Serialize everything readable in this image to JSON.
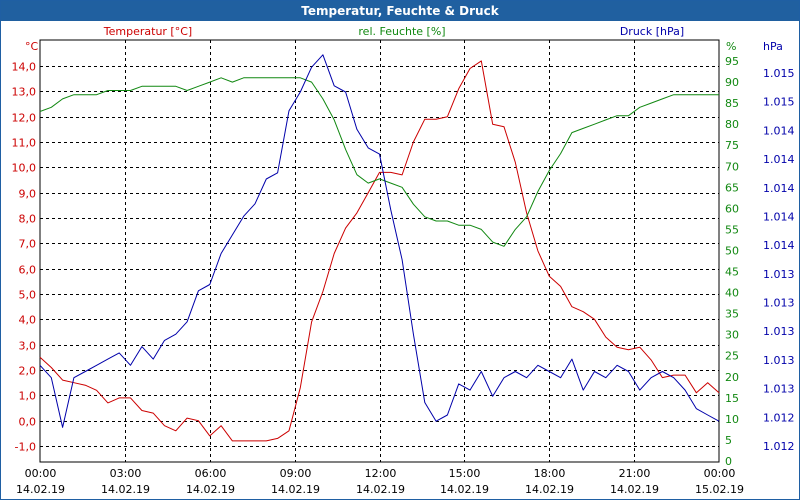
{
  "window": {
    "title": "Temperatur, Feuchte & Druck"
  },
  "colors": {
    "temperature": "#cc0000",
    "humidity": "#118811",
    "pressure": "#0000aa",
    "grid": "#000000",
    "title_bar": "#2060a0"
  },
  "chart_data": {
    "type": "line",
    "title": "Temperatur, Feuchte & Druck",
    "grid": true,
    "x_ticks": [
      {
        "time": "00:00",
        "date": "14.02.19"
      },
      {
        "time": "03:00",
        "date": "14.02.19"
      },
      {
        "time": "06:00",
        "date": "14.02.19"
      },
      {
        "time": "09:00",
        "date": "14.02.19"
      },
      {
        "time": "12:00",
        "date": "14.02.19"
      },
      {
        "time": "15:00",
        "date": "14.02.19"
      },
      {
        "time": "18:00",
        "date": "14.02.19"
      },
      {
        "time": "21:00",
        "date": "14.02.19"
      },
      {
        "time": "00:00",
        "date": "15.02.19"
      }
    ],
    "axes": {
      "temperature": {
        "label": "Temperatur [°C]",
        "unit": "°C",
        "ylim": [
          -2,
          15
        ],
        "tick_labels": [
          "-1,0",
          "0,0",
          "1,0",
          "2,0",
          "3,0",
          "4,0",
          "5,0",
          "6,0",
          "7,0",
          "8,0",
          "9,0",
          "10,0",
          "11,0",
          "12,0",
          "13,0",
          "14,0"
        ]
      },
      "humidity": {
        "label": "rel. Feuchte [%]",
        "unit": "%",
        "ylim": [
          0,
          100
        ],
        "tick_labels": [
          "0",
          "5",
          "10",
          "15",
          "20",
          "25",
          "30",
          "35",
          "40",
          "45",
          "50",
          "55",
          "60",
          "65",
          "70",
          "75",
          "80",
          "85",
          "90",
          "95"
        ]
      },
      "pressure": {
        "label": "Druck [hPa]",
        "unit": "hPa",
        "ylim": [
          1011.82,
          1015.15
        ],
        "tick_labels": [
          "1.012",
          "1.012",
          "1.013",
          "1.013",
          "1.013",
          "1.013",
          "1.013",
          "1.014",
          "1.014",
          "1.014",
          "1.014",
          "1.014",
          "1.015",
          "1.015"
        ]
      }
    },
    "series": [
      {
        "name": "Temperatur [°C]",
        "axis": "temperature",
        "x_hours": [
          0,
          0.4,
          0.8,
          1.2,
          1.6,
          2,
          2.4,
          2.8,
          3.2,
          3.6,
          4,
          4.4,
          4.8,
          5.2,
          5.6,
          6,
          6.4,
          6.8,
          7.2,
          7.6,
          8,
          8.4,
          8.8,
          9.2,
          9.6,
          10,
          10.4,
          10.8,
          11.2,
          11.6,
          12,
          12.4,
          12.8,
          13.2,
          13.6,
          14,
          14.4,
          14.8,
          15.2,
          15.6,
          16,
          16.4,
          16.8,
          17.2,
          17.6,
          18,
          18.4,
          18.8,
          19.2,
          19.6,
          20,
          20.4,
          20.8,
          21.2,
          21.6,
          22,
          22.4,
          22.8,
          23.2,
          23.6,
          24
        ],
        "values": [
          2.5,
          2.1,
          1.6,
          1.5,
          1.4,
          1.2,
          0.7,
          0.9,
          0.9,
          0.4,
          0.3,
          -0.2,
          -0.4,
          0.1,
          0.0,
          -0.6,
          -0.2,
          -0.8,
          -0.8,
          -0.8,
          -0.8,
          -0.7,
          -0.4,
          1.3,
          3.9,
          5.1,
          6.6,
          7.6,
          8.2,
          9.0,
          9.8,
          9.8,
          9.7,
          11.0,
          11.9,
          11.9,
          12.0,
          13.1,
          13.9,
          14.2,
          11.7,
          11.6,
          10.2,
          8.2,
          6.7,
          5.7,
          5.3,
          4.5,
          4.3,
          4.0,
          3.3,
          2.9,
          2.8,
          2.9,
          2.4,
          1.7,
          1.8,
          1.8,
          1.1,
          1.5,
          1.1
        ],
        "color": "#cc0000"
      },
      {
        "name": "rel. Feuchte [%]",
        "axis": "humidity",
        "x_hours": [
          0,
          0.4,
          0.8,
          1.2,
          1.6,
          2,
          2.4,
          2.8,
          3.2,
          3.6,
          4,
          4.4,
          4.8,
          5.2,
          5.6,
          6,
          6.4,
          6.8,
          7.2,
          7.6,
          8,
          8.4,
          8.8,
          9.2,
          9.6,
          10,
          10.4,
          10.8,
          11.2,
          11.6,
          12,
          12.4,
          12.8,
          13.2,
          13.6,
          14,
          14.4,
          14.8,
          15.2,
          15.6,
          16,
          16.4,
          16.8,
          17.2,
          17.6,
          18,
          18.4,
          18.8,
          19.2,
          19.6,
          20,
          20.4,
          20.8,
          21.2,
          21.6,
          22,
          22.4,
          22.8,
          23.2,
          23.6,
          24
        ],
        "values": [
          83,
          84,
          86,
          87,
          87,
          87,
          88,
          88,
          88,
          89,
          89,
          89,
          89,
          88,
          89,
          90,
          91,
          90,
          91,
          91,
          91,
          91,
          91,
          91,
          90,
          86,
          81,
          74,
          68,
          66,
          67,
          66,
          65,
          61,
          58,
          57,
          57,
          56,
          56,
          55,
          52,
          51,
          55,
          58,
          64,
          69,
          73,
          78,
          79,
          80,
          81,
          82,
          82,
          84,
          85,
          86,
          87,
          87,
          87,
          87,
          87
        ],
        "color": "#118811"
      },
      {
        "name": "Druck [hPa]",
        "axis": "pressure",
        "x_hours": [
          0,
          0.4,
          0.8,
          1.2,
          1.6,
          2,
          2.4,
          2.8,
          3.2,
          3.6,
          4,
          4.4,
          4.8,
          5.2,
          5.6,
          6,
          6.4,
          6.8,
          7.2,
          7.6,
          8,
          8.4,
          8.8,
          9.2,
          9.6,
          10,
          10.4,
          10.8,
          11.2,
          11.6,
          12,
          12.4,
          12.8,
          13.2,
          13.6,
          14,
          14.4,
          14.8,
          15.2,
          15.6,
          16,
          16.4,
          16.8,
          17.2,
          17.6,
          18,
          18.4,
          18.8,
          19.2,
          19.6,
          20,
          20.4,
          20.8,
          21.2,
          21.6,
          22,
          22.4,
          22.8,
          23.2,
          23.6,
          24
        ],
        "values": [
          1012.55,
          1012.45,
          1012.05,
          1012.45,
          1012.5,
          1012.55,
          1012.6,
          1012.65,
          1012.55,
          1012.7,
          1012.6,
          1012.75,
          1012.8,
          1012.9,
          1013.15,
          1013.2,
          1013.45,
          1013.6,
          1013.75,
          1013.85,
          1014.05,
          1014.1,
          1014.6,
          1014.75,
          1014.95,
          1015.05,
          1014.8,
          1014.75,
          1014.45,
          1014.3,
          1014.25,
          1013.8,
          1013.4,
          1012.8,
          1012.25,
          1012.1,
          1012.15,
          1012.4,
          1012.35,
          1012.5,
          1012.3,
          1012.45,
          1012.5,
          1012.45,
          1012.55,
          1012.5,
          1012.45,
          1012.6,
          1012.35,
          1012.5,
          1012.45,
          1012.55,
          1012.5,
          1012.35,
          1012.45,
          1012.5,
          1012.45,
          1012.35,
          1012.2,
          1012.15,
          1012.1
        ],
        "color": "#0000aa"
      }
    ]
  }
}
